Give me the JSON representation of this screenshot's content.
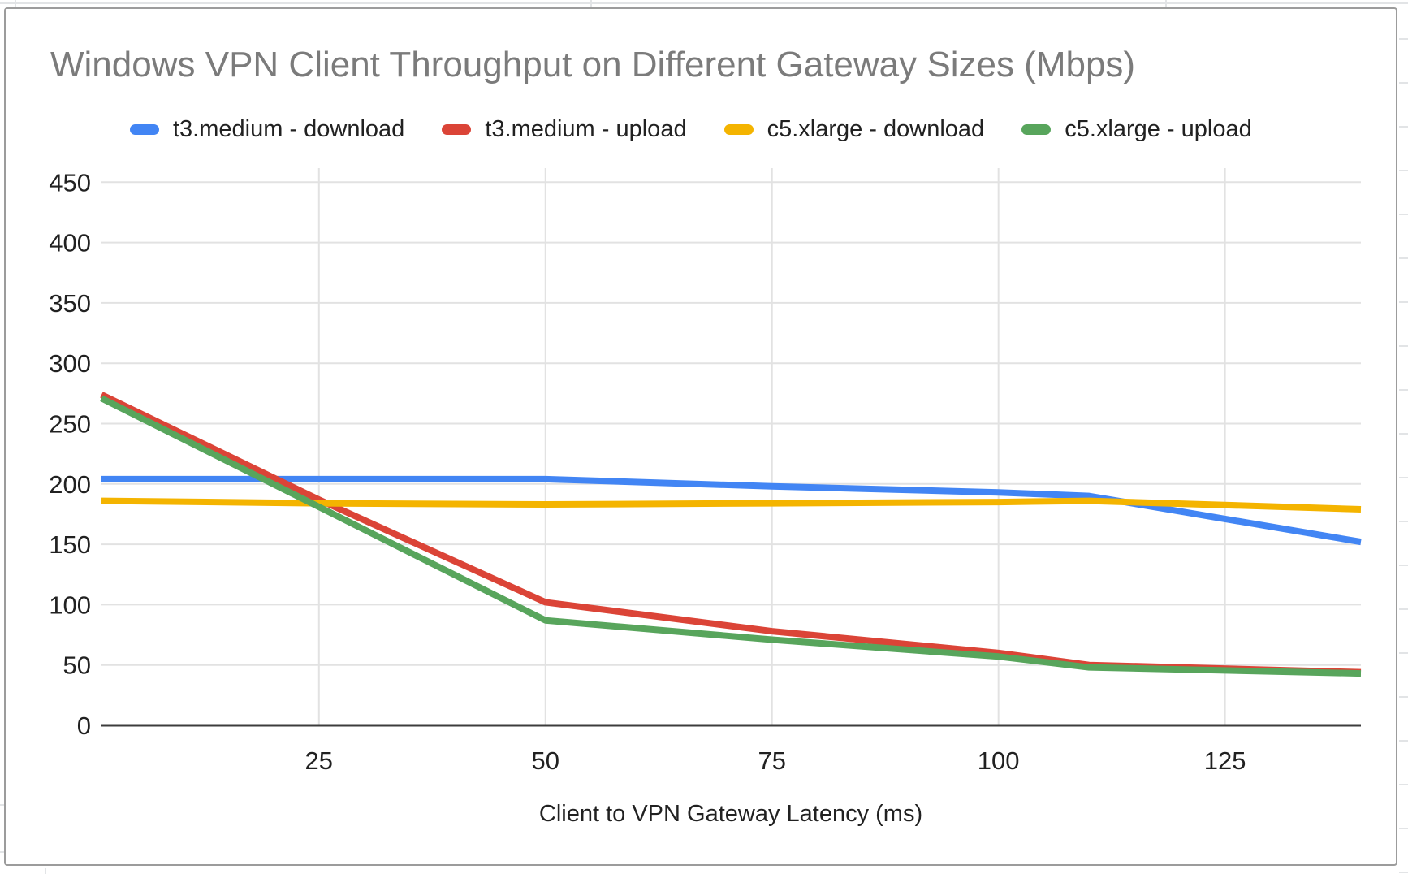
{
  "title": "Windows VPN Client Throughput on Different Gateway Sizes (Mbps)",
  "legend": {
    "items": [
      {
        "label": "t3.medium - download",
        "color": "#4285F4"
      },
      {
        "label": "t3.medium - upload",
        "color": "#DB4437"
      },
      {
        "label": "c5.xlarge - download",
        "color": "#F4B400"
      },
      {
        "label": "c5.xlarge - upload",
        "color": "#58A55C"
      }
    ]
  },
  "axis": {
    "x_title": "Client to VPN Gateway Latency (ms)"
  },
  "chart_data": {
    "type": "line",
    "title": "Windows VPN Client Throughput on Different Gateway Sizes (Mbps)",
    "xlabel": "Client to VPN Gateway Latency (ms)",
    "ylabel": "",
    "x": [
      1,
      25,
      50,
      75,
      100,
      110,
      140
    ],
    "series": [
      {
        "name": "t3.medium - download",
        "color": "#4285F4",
        "values": [
          204,
          204,
          204,
          198,
          193,
          190,
          152
        ]
      },
      {
        "name": "t3.medium - upload",
        "color": "#DB4437",
        "values": [
          274,
          187,
          102,
          78,
          60,
          50,
          44
        ]
      },
      {
        "name": "c5.xlarge - download",
        "color": "#F4B400",
        "values": [
          186,
          184,
          183,
          184,
          185,
          186,
          179
        ]
      },
      {
        "name": "c5.xlarge - upload",
        "color": "#58A55C",
        "values": [
          271,
          181,
          87,
          71,
          57,
          48,
          43
        ]
      }
    ],
    "x_ticks": [
      25,
      50,
      75,
      100,
      125
    ],
    "y_ticks": [
      0,
      50,
      100,
      150,
      200,
      250,
      300,
      350,
      400,
      450
    ],
    "xlim": [
      1,
      140
    ],
    "ylim": [
      0,
      450
    ],
    "grid": true,
    "legend_position": "top",
    "colors": {
      "gridline": "#e2e2e2",
      "baseline": "#3c3c3c",
      "tick_label": "#212121",
      "title": "#7b7b7b"
    }
  }
}
